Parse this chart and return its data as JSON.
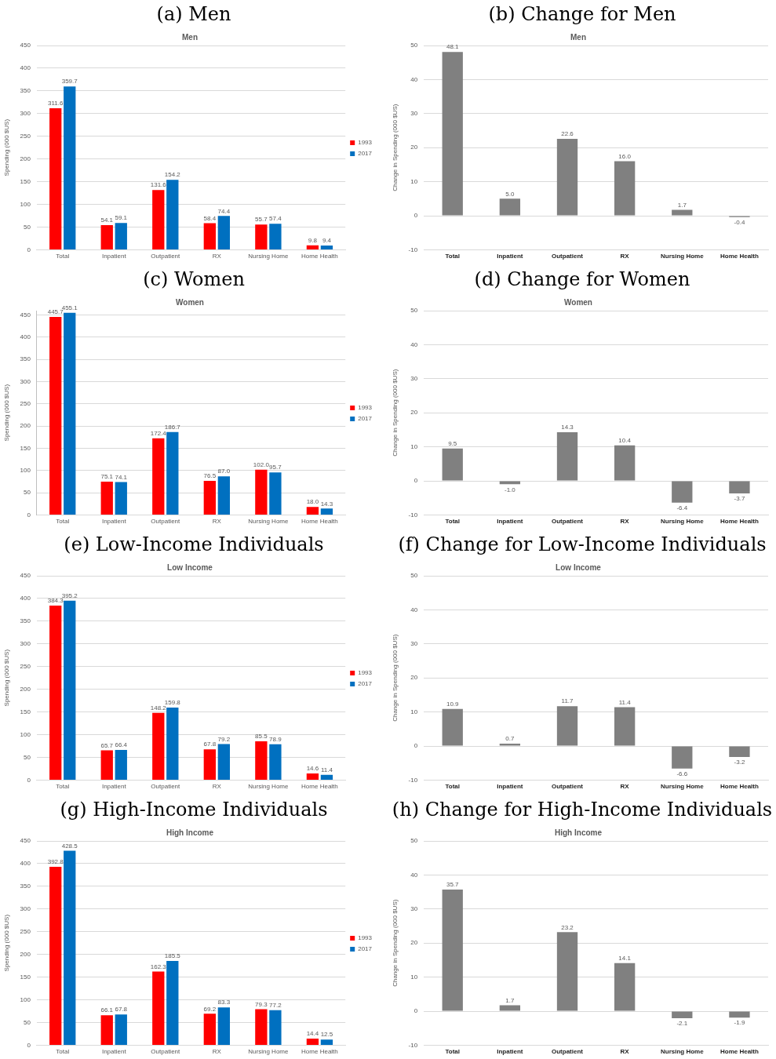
{
  "chart_data": [
    {
      "type": "bar",
      "title": "(a) Men",
      "subtitle": "Men",
      "ylabel": "Spending (000 $US)",
      "categories": [
        "Total",
        "Inpatient",
        "Outpatient",
        "RX",
        "Nursing Home",
        "Home Health"
      ],
      "series": [
        {
          "name": "1993",
          "color": "#ff0000",
          "values": [
            311.6,
            54.1,
            131.6,
            58.4,
            55.7,
            9.8
          ],
          "value_labels": [
            "311.6",
            "54.1",
            "131.6",
            "58.4",
            "55.7",
            "9.8"
          ]
        },
        {
          "name": "2017",
          "color": "#0070c0",
          "values": [
            359.7,
            59.1,
            154.2,
            74.4,
            57.4,
            9.4
          ],
          "value_labels": [
            "359.7",
            "59.1",
            "154.2",
            "74.4",
            "57.4",
            "9.4"
          ]
        }
      ],
      "ylim": [
        0,
        450
      ],
      "yticks": [
        0,
        50,
        100,
        150,
        200,
        250,
        300,
        350,
        400,
        450
      ],
      "grid": "y",
      "legend": "right"
    },
    {
      "type": "bar",
      "title": "(b) Change for Men",
      "subtitle": "Men",
      "ylabel": "Change in Spending (000 $US)",
      "categories": [
        "Total",
        "Inpatient",
        "Outpatient",
        "RX",
        "Nursing Home",
        "Home Health"
      ],
      "series": [
        {
          "color": "#808080",
          "values": [
            48.1,
            5.0,
            22.6,
            16.0,
            1.7,
            -0.4
          ],
          "value_labels": [
            "48.1",
            "5.0",
            "22.6",
            "16.0",
            "1.7",
            "-0.4"
          ]
        }
      ],
      "ylim": [
        -10,
        50
      ],
      "yticks": [
        -10,
        0,
        10,
        20,
        30,
        40,
        50
      ],
      "grid": "y"
    },
    {
      "type": "bar",
      "title": "(c) Women",
      "subtitle": "Women",
      "ylabel": "Spending (000 $US)",
      "categories": [
        "Total",
        "Inpatient",
        "Outpatient",
        "RX",
        "Nursing Home",
        "Home Health"
      ],
      "series": [
        {
          "name": "1993",
          "color": "#ff0000",
          "values": [
            445.7,
            75.1,
            172.4,
            76.5,
            102.0,
            18.0
          ],
          "value_labels": [
            "445.7",
            "75.1",
            "172.4",
            "76.5",
            "102.0",
            "18.0"
          ]
        },
        {
          "name": "2017",
          "color": "#0070c0",
          "values": [
            455.1,
            74.1,
            186.7,
            87.0,
            95.7,
            14.3
          ],
          "value_labels": [
            "455.1",
            "74.1",
            "186.7",
            "87.0",
            "95.7",
            "14.3"
          ]
        }
      ],
      "ylim": [
        0,
        460
      ],
      "yticks": [
        0,
        50,
        100,
        150,
        200,
        250,
        300,
        350,
        400,
        450
      ],
      "grid": "y",
      "legend": "right"
    },
    {
      "type": "bar",
      "title": "(d) Change for Women",
      "subtitle": "Women",
      "ylabel": "Change in Spending (000 $US)",
      "categories": [
        "Total",
        "Inpatient",
        "Outpatient",
        "RX",
        "Nursing Home",
        "Home Health"
      ],
      "series": [
        {
          "color": "#808080",
          "values": [
            9.5,
            -1.0,
            14.3,
            10.4,
            -6.4,
            -3.7
          ],
          "value_labels": [
            "9.5",
            "-1.0",
            "14.3",
            "10.4",
            "-6.4",
            "-3.7"
          ]
        }
      ],
      "ylim": [
        -10,
        50
      ],
      "yticks": [
        -10,
        0,
        10,
        20,
        30,
        40,
        50
      ],
      "grid": "y"
    },
    {
      "type": "bar",
      "title": "(e) Low-Income Individuals",
      "subtitle": "Low Income",
      "ylabel": "Spending (000 $US)",
      "categories": [
        "Total",
        "Inpatient",
        "Outpatient",
        "RX",
        "Nursing Home",
        "Home Health"
      ],
      "series": [
        {
          "name": "1993",
          "color": "#ff0000",
          "values": [
            384.3,
            65.7,
            148.2,
            67.8,
            85.5,
            14.6
          ],
          "value_labels": [
            "384.3",
            "65.7",
            "148.2",
            "67.8",
            "85.5",
            "14.6"
          ]
        },
        {
          "name": "2017",
          "color": "#0070c0",
          "values": [
            395.2,
            66.4,
            159.8,
            79.2,
            78.9,
            11.4
          ],
          "value_labels": [
            "395.2",
            "66.4",
            "159.8",
            "79.2",
            "78.9",
            "11.4"
          ]
        }
      ],
      "ylim": [
        0,
        450
      ],
      "yticks": [
        0,
        50,
        100,
        150,
        200,
        250,
        300,
        350,
        400,
        450
      ],
      "grid": "y",
      "legend": "right"
    },
    {
      "type": "bar",
      "title": "(f) Change for Low-Income Individuals",
      "subtitle": "Low Income",
      "ylabel": "Change in Spending (000 $US)",
      "categories": [
        "Total",
        "Inpatient",
        "Outpatient",
        "RX",
        "Nursing Home",
        "Home Health"
      ],
      "series": [
        {
          "color": "#808080",
          "values": [
            10.9,
            0.7,
            11.7,
            11.4,
            -6.6,
            -3.2
          ],
          "value_labels": [
            "10.9",
            "0.7",
            "11.7",
            "11.4",
            "-6.6",
            "-3.2"
          ]
        }
      ],
      "ylim": [
        -10,
        50
      ],
      "yticks": [
        -10,
        0,
        10,
        20,
        30,
        40,
        50
      ],
      "grid": "y"
    },
    {
      "type": "bar",
      "title": "(g) High-Income Individuals",
      "subtitle": "High Income",
      "ylabel": "Spending (000 $US)",
      "categories": [
        "Total",
        "Inpatient",
        "Outpatient",
        "RX",
        "Nursing Home",
        "Home Health"
      ],
      "series": [
        {
          "name": "1993",
          "color": "#ff0000",
          "values": [
            392.8,
            66.1,
            162.3,
            69.2,
            79.3,
            14.4
          ],
          "value_labels": [
            "392.8",
            "66.1",
            "162.3",
            "69.2",
            "79.3",
            "14.4"
          ]
        },
        {
          "name": "2017",
          "color": "#0070c0",
          "values": [
            428.5,
            67.8,
            185.5,
            83.3,
            77.2,
            12.5
          ],
          "value_labels": [
            "428.5",
            "67.8",
            "185.5",
            "83.3",
            "77.2",
            "12.5"
          ]
        }
      ],
      "ylim": [
        0,
        450
      ],
      "yticks": [
        0,
        50,
        100,
        150,
        200,
        250,
        300,
        350,
        400,
        450
      ],
      "grid": "y",
      "legend": "right"
    },
    {
      "type": "bar",
      "title": "(h) Change for High-Income Individuals",
      "subtitle": "High Income",
      "ylabel": "Change in Spending (000 $US)",
      "categories": [
        "Total",
        "Inpatient",
        "Outpatient",
        "RX",
        "Nursing Home",
        "Home Health"
      ],
      "series": [
        {
          "color": "#808080",
          "values": [
            35.7,
            1.7,
            23.2,
            14.1,
            -2.1,
            -1.9
          ],
          "value_labels": [
            "35.7",
            "1.7",
            "23.2",
            "14.1",
            "-2.1",
            "-1.9"
          ]
        }
      ],
      "ylim": [
        -10,
        50
      ],
      "yticks": [
        -10,
        0,
        10,
        20,
        30,
        40,
        50
      ],
      "grid": "y"
    }
  ]
}
